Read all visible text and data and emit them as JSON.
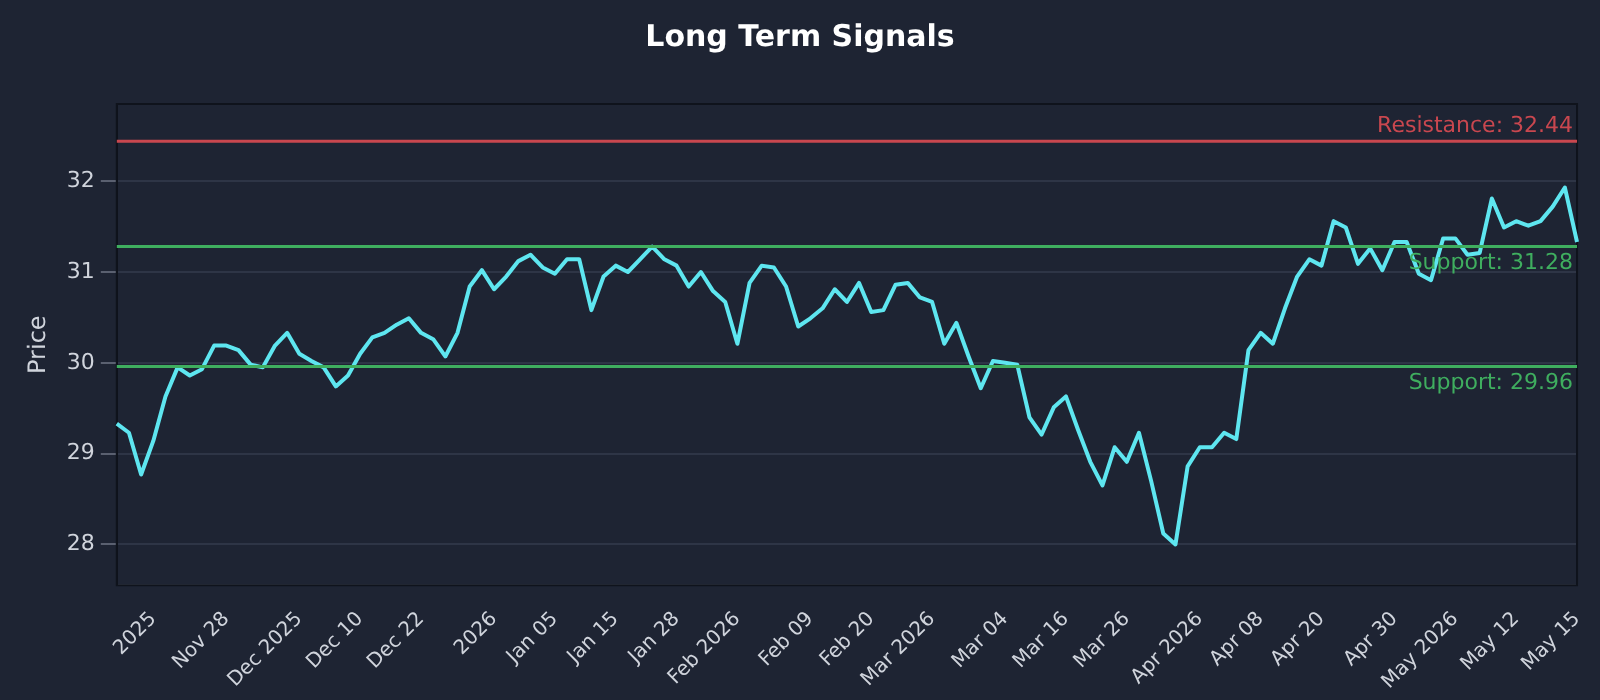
{
  "chart_data": {
    "type": "line",
    "title": "Long Term Signals",
    "ylabel": "Price",
    "categories": [
      null,
      null,
      null,
      "2025",
      null,
      null,
      null,
      null,
      null,
      "Nov 28",
      null,
      null,
      null,
      null,
      null,
      "Dec 2025",
      null,
      null,
      null,
      null,
      "Dec 10",
      null,
      null,
      null,
      null,
      "Dec 22",
      null,
      null,
      null,
      null,
      null,
      "2026",
      null,
      null,
      null,
      null,
      "Jan 05",
      null,
      null,
      null,
      null,
      "Jan 15",
      null,
      null,
      null,
      null,
      "Jan 28",
      null,
      null,
      null,
      null,
      "Feb 2026",
      null,
      null,
      null,
      null,
      null,
      "Feb 09",
      null,
      null,
      null,
      null,
      "Feb 20",
      null,
      null,
      null,
      null,
      "Mar 2026",
      null,
      null,
      null,
      null,
      null,
      "Mar 04",
      null,
      null,
      null,
      null,
      "Mar 16",
      null,
      null,
      null,
      null,
      "Mar 26",
      null,
      null,
      null,
      null,
      null,
      "Apr 2026",
      null,
      null,
      null,
      null,
      "Apr 08",
      null,
      null,
      null,
      null,
      "Apr 20",
      null,
      null,
      null,
      null,
      null,
      "Apr 30",
      null,
      null,
      null,
      null,
      "May 2026",
      null,
      null,
      null,
      null,
      "May 12",
      null,
      null,
      null,
      null,
      "May 15"
    ],
    "series": [
      {
        "color": "#5ee6f0",
        "values": [
          29.33,
          29.23,
          28.77,
          29.14,
          29.63,
          29.95,
          29.86,
          29.93,
          30.19,
          30.19,
          30.14,
          29.98,
          29.95,
          30.19,
          30.33,
          30.1,
          30.02,
          29.95,
          29.74,
          29.86,
          30.1,
          30.28,
          30.33,
          30.42,
          30.49,
          30.33,
          30.26,
          30.07,
          30.33,
          30.84,
          31.02,
          30.81,
          30.95,
          31.12,
          31.19,
          31.05,
          30.98,
          31.14,
          31.14,
          30.58,
          30.95,
          31.07,
          31.0,
          31.14,
          31.28,
          31.14,
          31.07,
          30.84,
          31.0,
          30.79,
          30.67,
          30.21,
          30.88,
          31.07,
          31.05,
          30.84,
          30.4,
          30.49,
          30.6,
          30.81,
          30.67,
          30.88,
          30.56,
          30.58,
          30.86,
          30.88,
          30.72,
          30.67,
          30.21,
          30.44,
          30.07,
          29.72,
          30.02,
          30.0,
          29.98,
          29.4,
          29.21,
          29.51,
          29.63,
          29.26,
          28.91,
          28.65,
          29.07,
          28.91,
          29.23,
          28.7,
          28.12,
          28.0,
          28.86,
          29.07,
          29.07,
          29.23,
          29.16,
          30.14,
          30.33,
          30.21,
          30.6,
          30.95,
          31.14,
          31.07,
          31.56,
          31.49,
          31.09,
          31.26,
          31.02,
          31.33,
          31.33,
          30.98,
          30.91,
          31.37,
          31.37,
          31.19,
          31.21,
          31.81,
          31.49,
          31.56,
          31.51,
          31.56,
          31.72,
          31.93,
          31.33
        ]
      }
    ],
    "ylim": [
      27.55,
      32.85
    ],
    "yticks": [
      28,
      29,
      30,
      31,
      32
    ],
    "grid": "y",
    "marker": "none",
    "line_style": "solid",
    "legend": false,
    "ref_lines": [
      {
        "axis": "y",
        "value": 32.44,
        "label": "Resistance: 32.44",
        "color": "#c9474f"
      },
      {
        "axis": "y",
        "value": 31.28,
        "label": "Support: 31.28",
        "color": "#3fae5f"
      },
      {
        "axis": "y",
        "value": 29.96,
        "label": "Support: 29.96",
        "color": "#3fae5f"
      }
    ]
  }
}
